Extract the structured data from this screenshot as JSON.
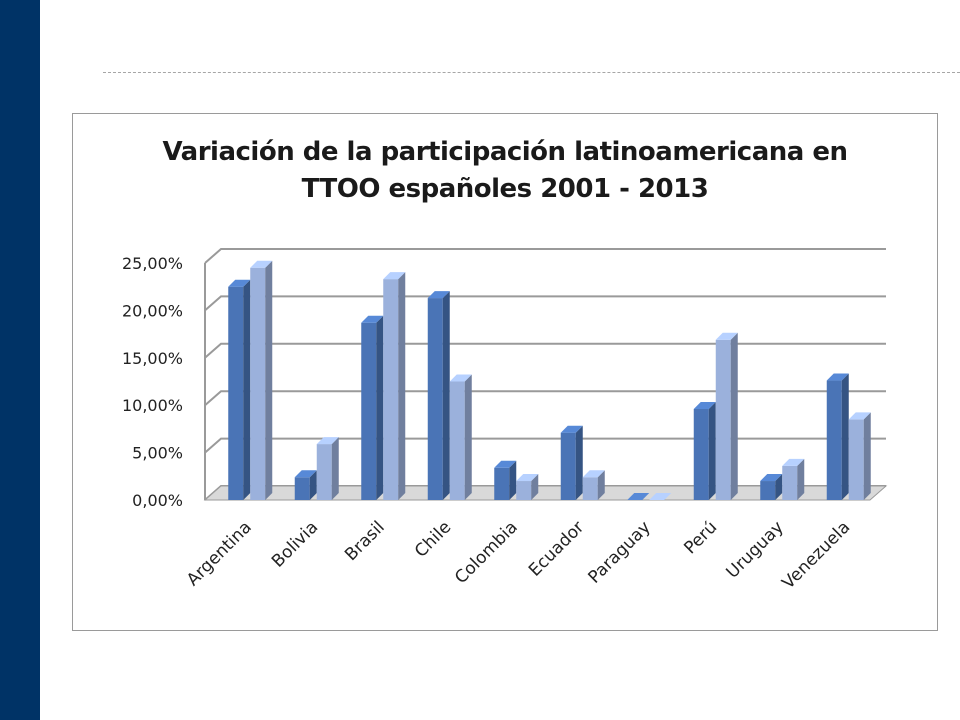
{
  "colors": {
    "sidebar": "#003366",
    "series_2001": "#4a74b6",
    "series_2013": "#9bb1dc",
    "grid": "#9a9a9a"
  },
  "chart_data": {
    "type": "bar",
    "title": "Variación de la participación latinoamericana en\nTTOO  españoles  2001 - 2013",
    "categories": [
      "Argentina",
      "Bolivia",
      "Brasil",
      "Chile",
      "Colombia",
      "Ecuador",
      "Paraguay",
      "Perú",
      "Uruguay",
      "Venezuela"
    ],
    "series": [
      {
        "values": [
          22.5,
          2.4,
          18.7,
          21.3,
          3.4,
          7.1,
          0.0,
          9.6,
          2.0,
          12.6
        ]
      },
      {
        "values": [
          24.5,
          5.9,
          23.3,
          12.5,
          2.0,
          2.4,
          0.0,
          16.9,
          3.6,
          8.5
        ]
      }
    ],
    "ylim": [
      0,
      25
    ],
    "yticks": [
      "0,00%",
      "5,00%",
      "10,00%",
      "15,00%",
      "20,00%",
      "25,00%"
    ],
    "grid": true,
    "three_d": true
  }
}
